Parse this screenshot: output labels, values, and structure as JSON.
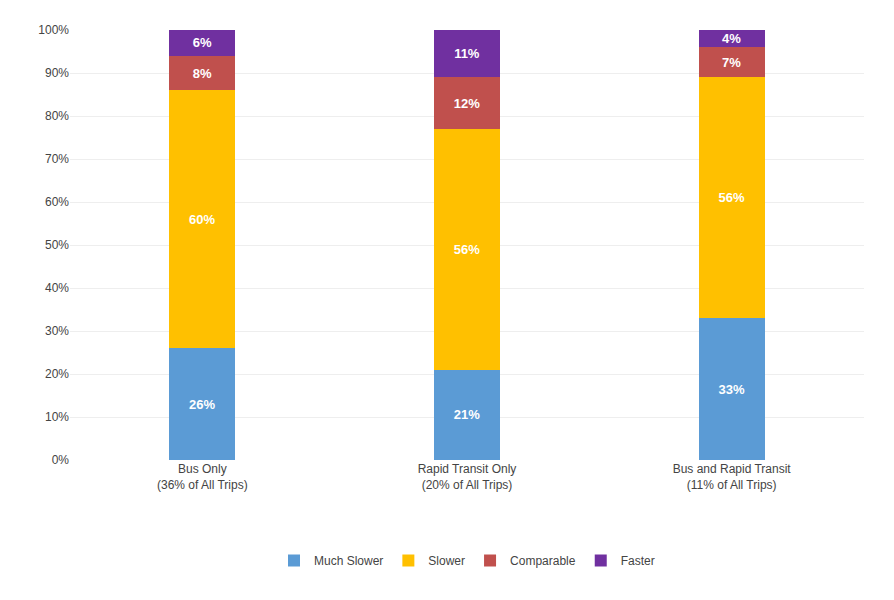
{
  "chart_data": {
    "type": "bar",
    "stacked": true,
    "data_labels": true,
    "grid": true,
    "legend": "bottom",
    "categories": [
      "Bus Only\n(36% of All Trips)",
      "Rapid Transit Only\n(20% of All Trips)",
      "Bus and Rapid Transit\n(11% of All Trips)"
    ],
    "series": [
      {
        "name": "Much Slower",
        "color": "#5B9BD5",
        "values": [
          26,
          21,
          33
        ],
        "value_labels": [
          "26%",
          "21%",
          "33%"
        ]
      },
      {
        "name": "Slower",
        "color": "#FFC000",
        "values": [
          60,
          56,
          56
        ],
        "value_labels": [
          "60%",
          "56%",
          "56%"
        ]
      },
      {
        "name": "Comparable",
        "color": "#C0504D",
        "values": [
          8,
          12,
          7
        ],
        "value_labels": [
          "8%",
          "12%",
          "7%"
        ]
      },
      {
        "name": "Faster",
        "color": "#7030A0",
        "values": [
          6,
          11,
          4
        ],
        "value_labels": [
          "6%",
          "11%",
          "4%"
        ]
      }
    ],
    "ylim": [
      0,
      100
    ],
    "yticks": [
      {
        "value": 0,
        "label": "0%"
      },
      {
        "value": 10,
        "label": "10%"
      },
      {
        "value": 20,
        "label": "20%"
      },
      {
        "value": 30,
        "label": "30%"
      },
      {
        "value": 40,
        "label": "40%"
      },
      {
        "value": 50,
        "label": "50%"
      },
      {
        "value": 60,
        "label": "60%"
      },
      {
        "value": 70,
        "label": "70%"
      },
      {
        "value": 80,
        "label": "80%"
      },
      {
        "value": 90,
        "label": "90%"
      },
      {
        "value": 100,
        "label": "100%"
      }
    ]
  }
}
